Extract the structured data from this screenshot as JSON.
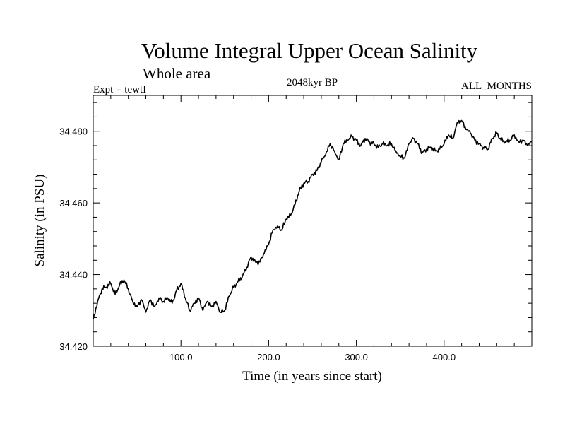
{
  "chart_data": {
    "type": "line",
    "title": "Volume Integral Upper Ocean Salinity",
    "subtitle": "Whole area",
    "experiment": "Expt = tewtI",
    "period": "2048kyr BP",
    "months": "ALL_MONTHS",
    "xlabel": "Time (in years since start)",
    "ylabel": "Salinity (in PSU)",
    "xlim": [
      0,
      500
    ],
    "ylim": [
      34.42,
      34.49
    ],
    "xticks": [
      100,
      200,
      300,
      400
    ],
    "xtick_labels": [
      "100.0",
      "200.0",
      "300.0",
      "400.0"
    ],
    "yticks": [
      34.42,
      34.44,
      34.46,
      34.48
    ],
    "ytick_labels": [
      "34.420",
      "34.440",
      "34.460",
      "34.480"
    ],
    "grid": false,
    "series": [
      {
        "name": "Salinity",
        "color": "#000000",
        "x": [
          0,
          5,
          10,
          15,
          20,
          25,
          30,
          35,
          40,
          45,
          50,
          55,
          60,
          65,
          70,
          75,
          80,
          85,
          90,
          95,
          100,
          105,
          110,
          115,
          120,
          125,
          130,
          135,
          140,
          145,
          150,
          155,
          160,
          165,
          170,
          175,
          180,
          185,
          190,
          195,
          200,
          205,
          210,
          215,
          220,
          225,
          230,
          235,
          240,
          245,
          250,
          255,
          260,
          265,
          270,
          275,
          280,
          285,
          290,
          295,
          300,
          305,
          310,
          315,
          320,
          325,
          330,
          335,
          340,
          345,
          350,
          355,
          360,
          365,
          370,
          375,
          380,
          385,
          390,
          395,
          400,
          405,
          410,
          415,
          420,
          425,
          430,
          435,
          440,
          445,
          450,
          455,
          460,
          465,
          470,
          475,
          480,
          485,
          490,
          495,
          500
        ],
        "y": [
          34.4275,
          34.4325,
          34.436,
          34.4365,
          34.4375,
          34.4345,
          34.437,
          34.4385,
          34.436,
          34.4325,
          34.431,
          34.433,
          34.4295,
          34.433,
          34.431,
          34.4335,
          34.4325,
          34.4335,
          34.432,
          34.4355,
          34.4375,
          34.4335,
          34.43,
          34.432,
          34.4335,
          34.43,
          34.4325,
          34.431,
          34.4325,
          34.4295,
          34.43,
          34.434,
          34.4365,
          34.438,
          34.4395,
          34.442,
          34.445,
          34.4435,
          34.4435,
          34.446,
          34.4485,
          34.4525,
          34.4535,
          34.4525,
          34.4555,
          34.4565,
          34.4595,
          34.4635,
          34.4655,
          34.466,
          34.468,
          34.469,
          34.4715,
          34.4735,
          34.4765,
          34.4745,
          34.472,
          34.4765,
          34.4775,
          34.4785,
          34.4775,
          34.476,
          34.478,
          34.477,
          34.4765,
          34.4755,
          34.4765,
          34.476,
          34.4765,
          34.4745,
          34.473,
          34.4725,
          34.4765,
          34.478,
          34.4765,
          34.474,
          34.475,
          34.4755,
          34.4745,
          34.475,
          34.4765,
          34.479,
          34.478,
          34.4825,
          34.483,
          34.4805,
          34.4795,
          34.4775,
          34.4765,
          34.4755,
          34.475,
          34.478,
          34.4795,
          34.4775,
          34.477,
          34.4775,
          34.479,
          34.477,
          34.4775,
          34.476,
          34.477
        ]
      }
    ]
  }
}
